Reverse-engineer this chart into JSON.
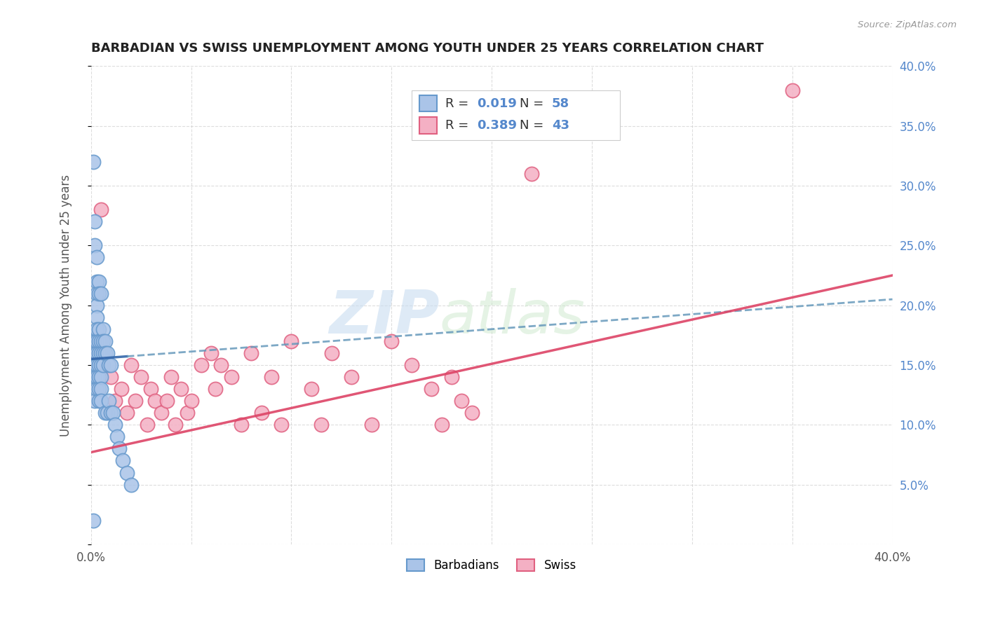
{
  "title": "BARBADIAN VS SWISS UNEMPLOYMENT AMONG YOUTH UNDER 25 YEARS CORRELATION CHART",
  "source": "Source: ZipAtlas.com",
  "ylabel": "Unemployment Among Youth under 25 years",
  "xlim": [
    0.0,
    0.4
  ],
  "ylim": [
    0.0,
    0.4
  ],
  "xticks": [
    0.0,
    0.05,
    0.1,
    0.15,
    0.2,
    0.25,
    0.3,
    0.35,
    0.4
  ],
  "yticks": [
    0.0,
    0.05,
    0.1,
    0.15,
    0.2,
    0.25,
    0.3,
    0.35,
    0.4
  ],
  "background_color": "#ffffff",
  "grid_color": "#cccccc",
  "barbadian_face": "#aac4e8",
  "barbadian_edge": "#6699cc",
  "swiss_face": "#f4b0c4",
  "swiss_edge": "#e06080",
  "trend_barbadian_dash_color": "#6699bb",
  "trend_barbadian_solid_color": "#3366aa",
  "trend_swiss_color": "#dd4466",
  "R_barbadian": 0.019,
  "N_barbadian": 58,
  "R_swiss": 0.389,
  "N_swiss": 43,
  "label_barbadian": "Barbadians",
  "label_swiss": "Swiss",
  "barbadian_x": [
    0.001,
    0.001,
    0.001,
    0.002,
    0.002,
    0.002,
    0.002,
    0.002,
    0.002,
    0.002,
    0.003,
    0.003,
    0.003,
    0.003,
    0.003,
    0.003,
    0.003,
    0.003,
    0.003,
    0.003,
    0.003,
    0.004,
    0.004,
    0.004,
    0.004,
    0.004,
    0.004,
    0.004,
    0.004,
    0.004,
    0.005,
    0.005,
    0.005,
    0.005,
    0.005,
    0.005,
    0.005,
    0.006,
    0.006,
    0.006,
    0.006,
    0.007,
    0.007,
    0.007,
    0.008,
    0.008,
    0.009,
    0.009,
    0.01,
    0.01,
    0.011,
    0.012,
    0.013,
    0.014,
    0.016,
    0.018,
    0.001,
    0.02
  ],
  "barbadian_y": [
    0.32,
    0.17,
    0.15,
    0.27,
    0.25,
    0.17,
    0.16,
    0.15,
    0.14,
    0.12,
    0.24,
    0.22,
    0.21,
    0.2,
    0.19,
    0.18,
    0.17,
    0.16,
    0.15,
    0.14,
    0.13,
    0.22,
    0.21,
    0.18,
    0.17,
    0.16,
    0.15,
    0.14,
    0.13,
    0.12,
    0.21,
    0.17,
    0.16,
    0.15,
    0.14,
    0.13,
    0.12,
    0.18,
    0.17,
    0.16,
    0.15,
    0.17,
    0.16,
    0.11,
    0.16,
    0.11,
    0.15,
    0.12,
    0.15,
    0.11,
    0.11,
    0.1,
    0.09,
    0.08,
    0.07,
    0.06,
    0.02,
    0.05
  ],
  "swiss_x": [
    0.01,
    0.012,
    0.015,
    0.018,
    0.02,
    0.022,
    0.025,
    0.028,
    0.03,
    0.032,
    0.035,
    0.038,
    0.04,
    0.042,
    0.045,
    0.048,
    0.05,
    0.055,
    0.06,
    0.062,
    0.065,
    0.07,
    0.075,
    0.08,
    0.085,
    0.09,
    0.095,
    0.1,
    0.11,
    0.115,
    0.12,
    0.13,
    0.14,
    0.15,
    0.16,
    0.17,
    0.175,
    0.18,
    0.185,
    0.19,
    0.005,
    0.22,
    0.35
  ],
  "swiss_y": [
    0.14,
    0.12,
    0.13,
    0.11,
    0.15,
    0.12,
    0.14,
    0.1,
    0.13,
    0.12,
    0.11,
    0.12,
    0.14,
    0.1,
    0.13,
    0.11,
    0.12,
    0.15,
    0.16,
    0.13,
    0.15,
    0.14,
    0.1,
    0.16,
    0.11,
    0.14,
    0.1,
    0.17,
    0.13,
    0.1,
    0.16,
    0.14,
    0.1,
    0.17,
    0.15,
    0.13,
    0.1,
    0.14,
    0.12,
    0.11,
    0.28,
    0.31,
    0.38
  ],
  "trend_b_x0": 0.0,
  "trend_b_x1": 0.4,
  "trend_b_y0": 0.155,
  "trend_b_y1": 0.205,
  "trend_s_x0": 0.0,
  "trend_s_x1": 0.4,
  "trend_s_y0": 0.077,
  "trend_s_y1": 0.225
}
